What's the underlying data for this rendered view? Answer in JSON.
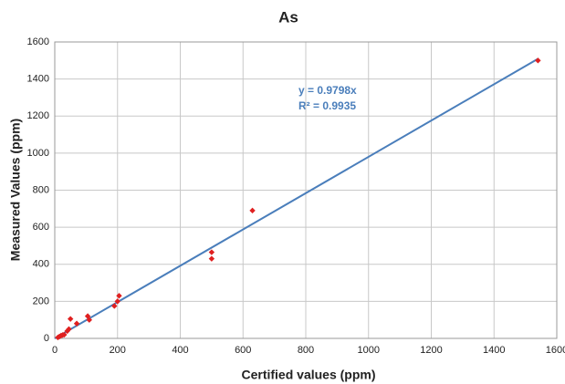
{
  "chart_data": {
    "type": "scatter",
    "title": "As",
    "x_label": "Certified values (ppm)",
    "y_label": "Measured Values (ppm)",
    "x": [
      10,
      15,
      20,
      25,
      30,
      40,
      45,
      50,
      70,
      105,
      110,
      190,
      200,
      205,
      500,
      500,
      630,
      1540
    ],
    "values": [
      5,
      10,
      15,
      18,
      20,
      40,
      50,
      105,
      80,
      120,
      100,
      175,
      200,
      230,
      465,
      430,
      690,
      1500
    ],
    "color": "#e02020",
    "trendline": {
      "x": [
        0,
        1540
      ],
      "values": [
        0,
        1509
      ],
      "color": "#4a7ebb"
    },
    "annotations": [
      "y = 0.9798x",
      "R² = 0.9935"
    ],
    "xlim": [
      0,
      1600
    ],
    "xticks": [
      0,
      200,
      400,
      600,
      800,
      1000,
      1200,
      1400,
      1600
    ],
    "ylim": [
      0,
      1600
    ],
    "yticks": [
      0,
      200,
      400,
      600,
      800,
      1000,
      1200,
      1400,
      1600
    ],
    "grid": true
  }
}
